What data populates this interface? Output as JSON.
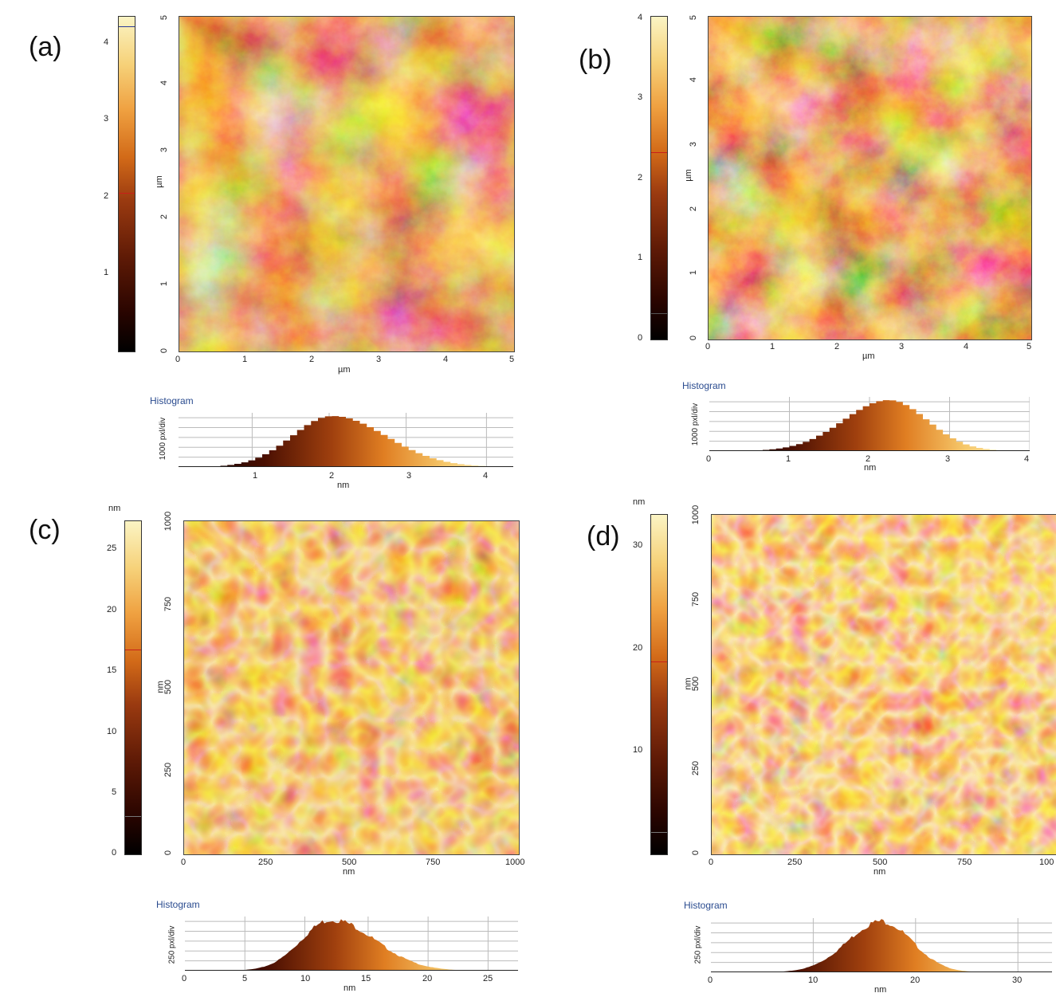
{
  "panels": [
    {
      "id": "a",
      "label": "(a)",
      "colorbar": {
        "unit": "",
        "ticks": [
          "1",
          "2",
          "3",
          "4"
        ],
        "marker_level": 2.05,
        "max": 4.3
      },
      "image": {
        "x_unit": "µm",
        "y_unit": "µm",
        "x_ticks": [
          "0",
          "1",
          "2",
          "3",
          "4",
          "5"
        ],
        "y_ticks": [
          "0",
          "1",
          "2",
          "3",
          "4",
          "5"
        ],
        "texture": "fine"
      },
      "histogram": {
        "title": "Histogram",
        "ylabel": "1000 pxl/div",
        "unit": "nm",
        "ticks": [
          "1",
          "2",
          "3",
          "4"
        ]
      }
    },
    {
      "id": "b",
      "label": "(b)",
      "colorbar": {
        "unit": "",
        "ticks": [
          "0",
          "1",
          "2",
          "3",
          "4"
        ],
        "marker_level": 2.35,
        "max": 4.0
      },
      "image": {
        "x_unit": "µm",
        "y_unit": "µm",
        "x_ticks": [
          "0",
          "1",
          "2",
          "3",
          "4",
          "5"
        ],
        "y_ticks": [
          "0",
          "1",
          "2",
          "3",
          "4",
          "5"
        ],
        "texture": "fine"
      },
      "histogram": {
        "title": "Histogram",
        "ylabel": "1000 pxl/div",
        "unit": "nm",
        "ticks": [
          "0",
          "1",
          "2",
          "3",
          "4"
        ]
      }
    },
    {
      "id": "c",
      "label": "(c)",
      "colorbar": {
        "unit": "nm",
        "ticks": [
          "0",
          "5",
          "10",
          "15",
          "20",
          "25"
        ],
        "marker_level": 16.9,
        "max": 27.5
      },
      "image": {
        "x_unit": "nm",
        "y_unit": "nm",
        "x_ticks": [
          "0",
          "250",
          "500",
          "750",
          "1000"
        ],
        "y_ticks": [
          "0",
          "250",
          "500",
          "750",
          "1000"
        ],
        "texture": "grain"
      },
      "histogram": {
        "title": "Histogram",
        "ylabel": "250 pxl/div",
        "unit": "nm",
        "ticks": [
          "0",
          "5",
          "10",
          "15",
          "20",
          "25"
        ]
      }
    },
    {
      "id": "d",
      "label": "(d)",
      "colorbar": {
        "unit": "nm",
        "ticks": [
          "10",
          "20",
          "30"
        ],
        "marker_level": 19.0,
        "max": 33.0
      },
      "image": {
        "x_unit": "nm",
        "y_unit": "nm",
        "x_ticks": [
          "0",
          "250",
          "500",
          "750",
          "100"
        ],
        "y_ticks": [
          "0",
          "250",
          "500",
          "750",
          "1000"
        ],
        "texture": "grain"
      },
      "histogram": {
        "title": "Histogram",
        "ylabel": "250 pxl/div",
        "unit": "nm",
        "ticks": [
          "0",
          "10",
          "20",
          "30"
        ]
      }
    }
  ],
  "colors": {
    "dark": "#1a0300",
    "mid": "#c85c14",
    "light": "#fbefb0",
    "marker": "#c8201a",
    "hist_title": "#2a4b8f"
  }
}
